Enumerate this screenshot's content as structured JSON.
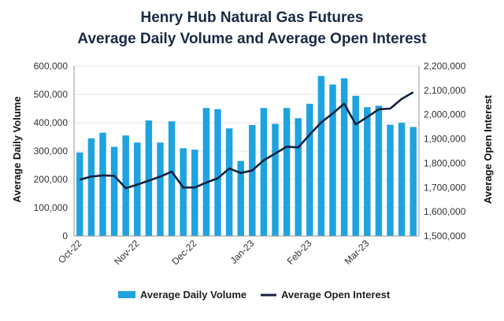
{
  "chart_data": {
    "type": "bar",
    "title_lines": [
      "Henry Hub Natural Gas Futures",
      "Average Daily Volume and Average Open Interest"
    ],
    "ylabel": "Average Daily Volume",
    "ylabel_right": "Average Open Interest",
    "ylim": [
      0,
      600000
    ],
    "ylim_right": [
      1500000,
      2200000
    ],
    "yticks": [
      "0",
      "100,000",
      "200,000",
      "300,000",
      "400,000",
      "500,000",
      "600,000"
    ],
    "yticks_right": [
      "1,500,000",
      "1,600,000",
      "1,700,000",
      "1,800,000",
      "1,900,000",
      "2,000,000",
      "2,100,000",
      "2,200,000"
    ],
    "month_labels": [
      {
        "label": "Oct-22",
        "index": 0
      },
      {
        "label": "Nov-22",
        "index": 5
      },
      {
        "label": "Dec-22",
        "index": 10
      },
      {
        "label": "Jan-23",
        "index": 15
      },
      {
        "label": "Feb-23",
        "index": 20
      },
      {
        "label": "Mar-23",
        "index": 25
      }
    ],
    "series": [
      {
        "name": "Average Daily Volume",
        "type": "bar",
        "axis": "left",
        "color": "#1ea3e0",
        "values": [
          295000,
          345000,
          365000,
          315000,
          355000,
          330000,
          408000,
          330000,
          405000,
          310000,
          305000,
          452000,
          448000,
          380000,
          265000,
          392000,
          452000,
          396000,
          452000,
          416000,
          467000,
          565000,
          535000,
          557000,
          495000,
          455000,
          460000,
          393000,
          400000,
          385000
        ]
      },
      {
        "name": "Average Open Interest",
        "type": "line",
        "axis": "right",
        "color": "#14233f",
        "values": [
          1732000,
          1745000,
          1750000,
          1748000,
          1697000,
          1712000,
          1728000,
          1745000,
          1765000,
          1700000,
          1700000,
          1720000,
          1738000,
          1778000,
          1760000,
          1770000,
          1812000,
          1840000,
          1868000,
          1865000,
          1918000,
          1968000,
          2005000,
          2045000,
          1960000,
          1990000,
          2022000,
          2025000,
          2065000,
          2092000
        ]
      }
    ],
    "legend_position": "bottom"
  }
}
